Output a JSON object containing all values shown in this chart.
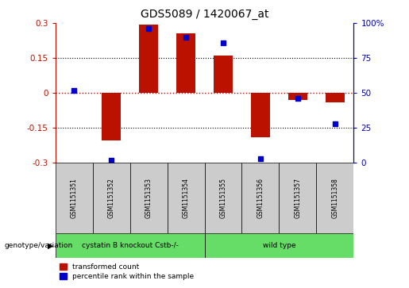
{
  "title": "GDS5089 / 1420067_at",
  "samples": [
    "GSM1151351",
    "GSM1151352",
    "GSM1151353",
    "GSM1151354",
    "GSM1151355",
    "GSM1151356",
    "GSM1151357",
    "GSM1151358"
  ],
  "red_values": [
    0.0,
    -0.205,
    0.295,
    0.255,
    0.16,
    -0.19,
    -0.03,
    -0.04
  ],
  "blue_values_pct": [
    52,
    2,
    96,
    90,
    86,
    3,
    46,
    28
  ],
  "ylim_left": [
    -0.3,
    0.3
  ],
  "ylim_right": [
    0,
    100
  ],
  "yticks_left": [
    -0.3,
    -0.15,
    0,
    0.15,
    0.3
  ],
  "yticks_right": [
    0,
    25,
    50,
    75,
    100
  ],
  "ytick_labels_left": [
    "-0.3",
    "-0.15",
    "0",
    "0.15",
    "0.3"
  ],
  "ytick_labels_right": [
    "0",
    "25",
    "50",
    "75",
    "100%"
  ],
  "dotted_lines": [
    -0.15,
    0.15
  ],
  "group1_samples": [
    0,
    1,
    2,
    3
  ],
  "group2_samples": [
    4,
    5,
    6,
    7
  ],
  "group1_label": "cystatin B knockout Cstb-/-",
  "group2_label": "wild type",
  "group_row_label": "genotype/variation",
  "legend_red": "transformed count",
  "legend_blue": "percentile rank within the sample",
  "bar_color": "#bb1100",
  "dot_color": "#0000cc",
  "zero_line_color": "#cc0000",
  "group1_color": "#66dd66",
  "group2_color": "#66dd66",
  "sample_box_color": "#cccccc",
  "bar_width": 0.5
}
